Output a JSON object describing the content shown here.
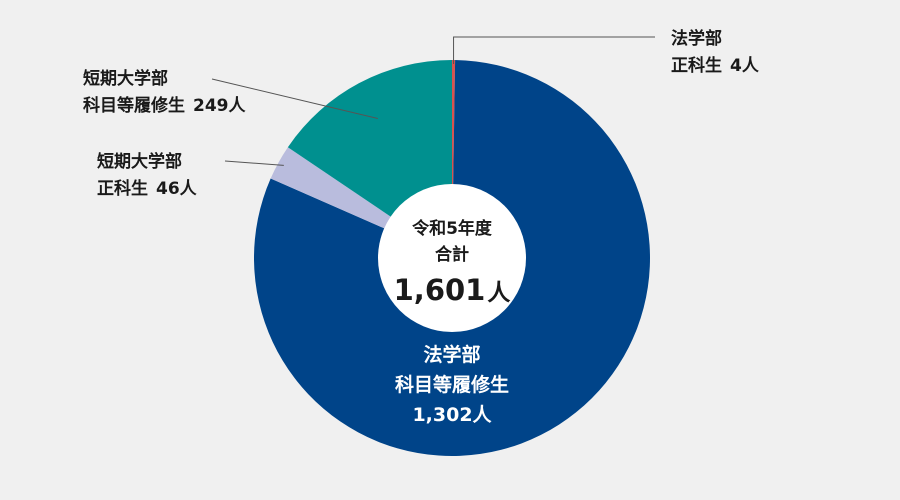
{
  "chart_data": {
    "type": "pie",
    "center_label": {
      "line1": "令和5年度",
      "line2": "合計",
      "total_number": "1,601",
      "total_unit": "人"
    },
    "slices": [
      {
        "line1": "法学部",
        "line2": "正科生",
        "value": 4,
        "value_text": "4人",
        "color": "#d9534f"
      },
      {
        "line1": "法学部",
        "line2": "科目等履修生",
        "value": 1302,
        "value_text": "1,302人",
        "color": "#004489"
      },
      {
        "line1": "短期大学部",
        "line2": "正科生",
        "value": 46,
        "value_text": "46人",
        "color": "#b9bcdd"
      },
      {
        "line1": "短期大学部",
        "line2": "科目等履修生",
        "value": 249,
        "value_text": "249人",
        "color": "#00908f"
      }
    ],
    "leader_line_color": "#555555",
    "center_fill": "#ffffff"
  }
}
